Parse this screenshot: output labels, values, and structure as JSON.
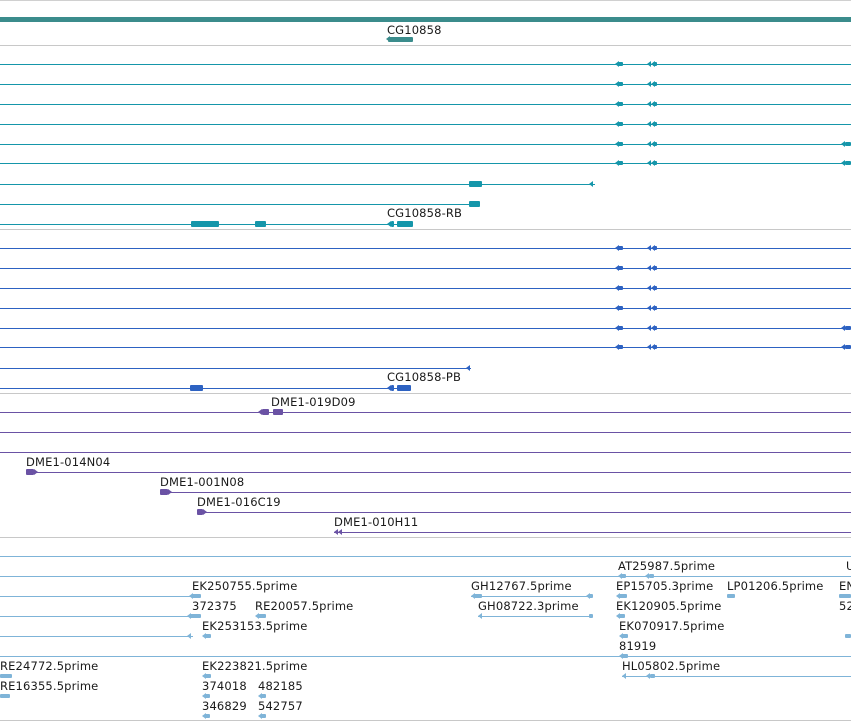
{
  "colors": {
    "gene_bar": "#3b8c8c",
    "teal": "#1596aa",
    "blue": "#2d62c2",
    "purple": "#6a52a4",
    "light": "#7fb4d8",
    "divider": "#c8c8c8"
  },
  "gene_track": {
    "gene_label": "CG10858",
    "transcripts_rb": {
      "label": "CG10858-RB"
    },
    "transcripts_pb": {
      "label": "CG10858-PB"
    }
  },
  "clone_track": {
    "labels": [
      "DME1-019D09",
      "DME1-014N04",
      "DME1-001N08",
      "DME1-016C19",
      "DME1-010H11"
    ]
  },
  "est_track": {
    "labels": [
      "AT25987.5prime",
      "U",
      "EK250755.5prime",
      "GH12767.5prime",
      "EP15705.3prime",
      "LP01206.5prime",
      "EN",
      "372375",
      "RE20057.5prime",
      "GH08722.3prime",
      "EK120905.5prime",
      "52",
      "EK253153.5prime",
      "EK070917.5prime",
      "81919",
      "RE24772.5prime",
      "EK223821.5prime",
      "HL05802.5prime",
      "RE16355.5prime",
      "374018",
      "482185",
      "346829",
      "542757"
    ]
  }
}
